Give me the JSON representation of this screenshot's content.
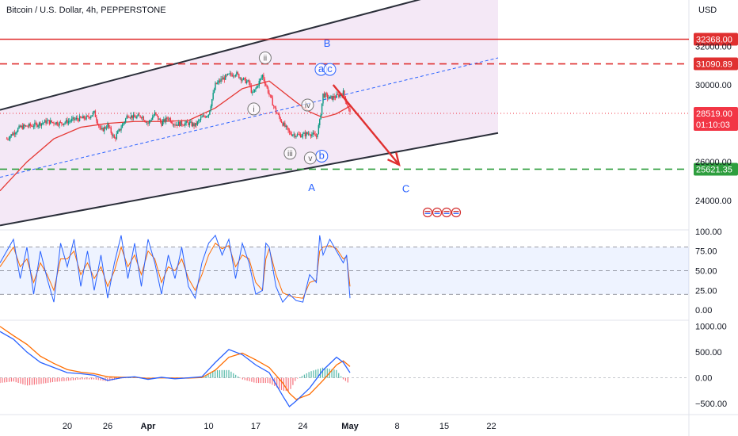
{
  "header": {
    "title": "Bitcoin / U.S. Dollar, 4h, PEPPERSTONE",
    "currency": "USD"
  },
  "colors": {
    "up": "#089981",
    "down": "#f23645",
    "channel_fill": "#f3e5f5",
    "channel_line": "#2a2e39",
    "resistance": "#e03030",
    "support": "#2e9e3e",
    "midline": "#2962ff",
    "ma": "#e53935",
    "wave_label": "#2962ff",
    "stoch_k": "#2962ff",
    "stoch_d": "#ff6d00",
    "macd": "#2962ff",
    "signal": "#ff6d00"
  },
  "chart_data": [
    {
      "type": "candlestick",
      "panel": "price",
      "y_ticks": [
        "24000.00",
        "26000.00",
        "30000.00",
        "32000.00"
      ],
      "x_ticks": [
        "20",
        "26",
        "Apr",
        "10",
        "17",
        "24",
        "May",
        "8",
        "15",
        "22"
      ],
      "x_tick_days": [
        -11,
        -5,
        1,
        10,
        17,
        24,
        31,
        38,
        45,
        52
      ],
      "ylim": [
        22800,
        33500
      ],
      "close_path": [
        [
          -20,
          27200
        ],
        [
          -18,
          27800
        ],
        [
          -16,
          27900
        ],
        [
          -14,
          28100
        ],
        [
          -12,
          28000
        ],
        [
          -10,
          28200
        ],
        [
          -8,
          28300
        ],
        [
          -7,
          28550
        ],
        [
          -6,
          27600
        ],
        [
          -5,
          27900
        ],
        [
          -4,
          27200
        ],
        [
          -3,
          27800
        ],
        [
          -2,
          28450
        ],
        [
          -1,
          28300
        ],
        [
          0,
          28400
        ],
        [
          1,
          28000
        ],
        [
          2,
          28500
        ],
        [
          3,
          28000
        ],
        [
          4,
          28300
        ],
        [
          5,
          27950
        ],
        [
          6,
          28000
        ],
        [
          7,
          28000
        ],
        [
          8,
          27900
        ],
        [
          9,
          28300
        ],
        [
          10,
          28500
        ],
        [
          11,
          30000
        ],
        [
          12,
          30300
        ],
        [
          13,
          30500
        ],
        [
          14,
          30600
        ],
        [
          15,
          30300
        ],
        [
          16,
          30100
        ],
        [
          16.5,
          29500
        ],
        [
          17,
          29800
        ],
        [
          18,
          30500
        ],
        [
          19,
          29500
        ],
        [
          20,
          28600
        ],
        [
          21,
          28000
        ],
        [
          22,
          27500
        ],
        [
          23,
          27400
        ],
        [
          24,
          27400
        ],
        [
          25,
          27500
        ],
        [
          26,
          27300
        ],
        [
          26.5,
          28100
        ],
        [
          27,
          29500
        ],
        [
          28,
          29300
        ],
        [
          29,
          29400
        ],
        [
          30,
          29600
        ],
        [
          31,
          28519
        ]
      ],
      "moving_average": {
        "points": [
          [
            -21,
            24500
          ],
          [
            -17,
            26000
          ],
          [
            -13,
            27200
          ],
          [
            -9,
            27800
          ],
          [
            -5,
            28000
          ],
          [
            -1,
            28100
          ],
          [
            3,
            28100
          ],
          [
            7,
            28150
          ],
          [
            11,
            28800
          ],
          [
            15,
            29800
          ],
          [
            19,
            30200
          ],
          [
            23,
            29100
          ],
          [
            25,
            28600
          ],
          [
            27,
            28300
          ],
          [
            29,
            28500
          ],
          [
            31,
            28900
          ]
        ]
      },
      "channel": {
        "upper": [
          [
            -21,
            28700
          ],
          [
            53,
            35500
          ]
        ],
        "lower": [
          [
            -21,
            22700
          ],
          [
            53,
            27500
          ]
        ],
        "middle": [
          [
            -21,
            25200
          ],
          [
            53,
            31400
          ]
        ]
      },
      "levels": [
        {
          "value": 32368.0,
          "label": "32368.00",
          "style": "solid",
          "color": "#e03030"
        },
        {
          "value": 31090.89,
          "label": "31090.89",
          "style": "dashed",
          "color": "#e03030"
        },
        {
          "value": 25621.35,
          "label": "25621.35",
          "style": "dashed",
          "color": "#2e9e3e"
        }
      ],
      "last_price": {
        "value": 28519.0,
        "label": "28519.00",
        "countdown": "01:10:03"
      },
      "forecast_arrow": {
        "from": [
          28.5,
          30000
        ],
        "to": [
          38.3,
          25850
        ]
      },
      "wave_labels": [
        {
          "text": "B",
          "day": 27.6,
          "price": 32150,
          "circled": false
        },
        {
          "text": "A",
          "day": 25.3,
          "price": 24650,
          "circled": false
        },
        {
          "text": "C",
          "day": 39.3,
          "price": 24600,
          "circled": false
        },
        {
          "text": "a",
          "day": 26.7,
          "price": 30800,
          "circled": true
        },
        {
          "text": "c",
          "day": 28.0,
          "price": 30800,
          "circled": true
        },
        {
          "text": "b",
          "day": 26.8,
          "price": 26300,
          "circled": true
        },
        {
          "text": "i",
          "day": 16.7,
          "price": 28750,
          "circled": true
        },
        {
          "text": "ii",
          "day": 18.4,
          "price": 31400,
          "circled": true
        },
        {
          "text": "iii",
          "day": 22.1,
          "price": 26450,
          "circled": true
        },
        {
          "text": "iv",
          "day": 24.7,
          "price": 28950,
          "circled": true
        },
        {
          "text": "v",
          "day": 25.1,
          "price": 26200,
          "circled": true
        }
      ]
    },
    {
      "type": "line",
      "panel": "stochastic",
      "y_ticks": [
        "100.00",
        "75.00",
        "50.00",
        "25.00",
        "0.00"
      ],
      "ylim": [
        -5,
        106
      ],
      "bands": [
        80,
        50,
        20
      ],
      "series": [
        {
          "values": [
            [
              -21,
              60
            ],
            [
              -19,
              90
            ],
            [
              -18,
              40
            ],
            [
              -17,
              80
            ],
            [
              -16,
              20
            ],
            [
              -15,
              75
            ],
            [
              -14,
              40
            ],
            [
              -13,
              10
            ],
            [
              -12,
              85
            ],
            [
              -11,
              55
            ],
            [
              -10,
              90
            ],
            [
              -9,
              30
            ],
            [
              -8,
              75
            ],
            [
              -7,
              25
            ],
            [
              -6,
              70
            ],
            [
              -5,
              15
            ],
            [
              -4,
              60
            ],
            [
              -3,
              95
            ],
            [
              -2,
              40
            ],
            [
              -1,
              85
            ],
            [
              0,
              30
            ],
            [
              1,
              90
            ],
            [
              2,
              60
            ],
            [
              3,
              20
            ],
            [
              4,
              70
            ],
            [
              5,
              40
            ],
            [
              6,
              80
            ],
            [
              7,
              30
            ],
            [
              8,
              15
            ],
            [
              9,
              60
            ],
            [
              10,
              85
            ],
            [
              11,
              95
            ],
            [
              12,
              70
            ],
            [
              13,
              90
            ],
            [
              14,
              40
            ],
            [
              15,
              85
            ],
            [
              16,
              60
            ],
            [
              17,
              20
            ],
            [
              18,
              25
            ],
            [
              18.5,
              85
            ],
            [
              19,
              80
            ],
            [
              20,
              30
            ],
            [
              21,
              10
            ],
            [
              22,
              20
            ],
            [
              23,
              12
            ],
            [
              24,
              10
            ],
            [
              25,
              45
            ],
            [
              26,
              35
            ],
            [
              26.5,
              95
            ],
            [
              27,
              70
            ],
            [
              28,
              90
            ],
            [
              29,
              75
            ],
            [
              30,
              60
            ],
            [
              30.5,
              70
            ],
            [
              31,
              15
            ]
          ]
        },
        {
          "values": [
            [
              -21,
              55
            ],
            [
              -19,
              80
            ],
            [
              -18,
              55
            ],
            [
              -17,
              65
            ],
            [
              -16,
              35
            ],
            [
              -15,
              60
            ],
            [
              -14,
              45
            ],
            [
              -13,
              25
            ],
            [
              -12,
              65
            ],
            [
              -11,
              65
            ],
            [
              -10,
              75
            ],
            [
              -9,
              45
            ],
            [
              -8,
              60
            ],
            [
              -7,
              40
            ],
            [
              -6,
              55
            ],
            [
              -5,
              30
            ],
            [
              -4,
              50
            ],
            [
              -3,
              80
            ],
            [
              -2,
              55
            ],
            [
              -1,
              70
            ],
            [
              0,
              45
            ],
            [
              1,
              75
            ],
            [
              2,
              65
            ],
            [
              3,
              35
            ],
            [
              4,
              55
            ],
            [
              5,
              50
            ],
            [
              6,
              65
            ],
            [
              7,
              40
            ],
            [
              8,
              25
            ],
            [
              9,
              45
            ],
            [
              10,
              70
            ],
            [
              11,
              85
            ],
            [
              12,
              78
            ],
            [
              13,
              82
            ],
            [
              14,
              55
            ],
            [
              15,
              70
            ],
            [
              16,
              65
            ],
            [
              17,
              35
            ],
            [
              18,
              25
            ],
            [
              18.5,
              65
            ],
            [
              19,
              78
            ],
            [
              20,
              45
            ],
            [
              21,
              22
            ],
            [
              22,
              18
            ],
            [
              23,
              16
            ],
            [
              24,
              15
            ],
            [
              25,
              35
            ],
            [
              26,
              38
            ],
            [
              26.5,
              75
            ],
            [
              27,
              80
            ],
            [
              28,
              82
            ],
            [
              29,
              78
            ],
            [
              30,
              65
            ],
            [
              30.5,
              68
            ],
            [
              31,
              30
            ]
          ]
        }
      ]
    },
    {
      "type": "bar+line",
      "panel": "macd",
      "y_ticks": [
        "1000.00",
        "500.00",
        "0.00",
        "−500.00"
      ],
      "ylim": [
        -700,
        1150
      ],
      "series": [
        {
          "values": [
            [
              -21,
              900
            ],
            [
              -19,
              750
            ],
            [
              -17,
              500
            ],
            [
              -15,
              300
            ],
            [
              -13,
              200
            ],
            [
              -11,
              100
            ],
            [
              -9,
              80
            ],
            [
              -7,
              50
            ],
            [
              -5,
              -50
            ],
            [
              -3,
              0
            ],
            [
              -1,
              20
            ],
            [
              1,
              -30
            ],
            [
              3,
              10
            ],
            [
              5,
              -20
            ],
            [
              7,
              0
            ],
            [
              9,
              20
            ],
            [
              11,
              300
            ],
            [
              13,
              550
            ],
            [
              15,
              450
            ],
            [
              17,
              250
            ],
            [
              19,
              100
            ],
            [
              21,
              -350
            ],
            [
              22,
              -560
            ],
            [
              23,
              -450
            ],
            [
              25,
              -200
            ],
            [
              27,
              150
            ],
            [
              29,
              400
            ],
            [
              30,
              300
            ],
            [
              31,
              100
            ]
          ]
        },
        {
          "values": [
            [
              -21,
              1000
            ],
            [
              -19,
              820
            ],
            [
              -17,
              650
            ],
            [
              -15,
              420
            ],
            [
              -13,
              280
            ],
            [
              -11,
              160
            ],
            [
              -9,
              110
            ],
            [
              -7,
              80
            ],
            [
              -5,
              20
            ],
            [
              -3,
              10
            ],
            [
              -1,
              10
            ],
            [
              1,
              -10
            ],
            [
              3,
              0
            ],
            [
              5,
              -5
            ],
            [
              7,
              -5
            ],
            [
              9,
              5
            ],
            [
              11,
              150
            ],
            [
              13,
              400
            ],
            [
              15,
              480
            ],
            [
              17,
              350
            ],
            [
              19,
              200
            ],
            [
              21,
              -100
            ],
            [
              22,
              -300
            ],
            [
              23,
              -420
            ],
            [
              25,
              -320
            ],
            [
              27,
              -50
            ],
            [
              29,
              250
            ],
            [
              30,
              330
            ],
            [
              31,
              220
            ]
          ]
        }
      ],
      "histogram_from": "difference"
    }
  ]
}
